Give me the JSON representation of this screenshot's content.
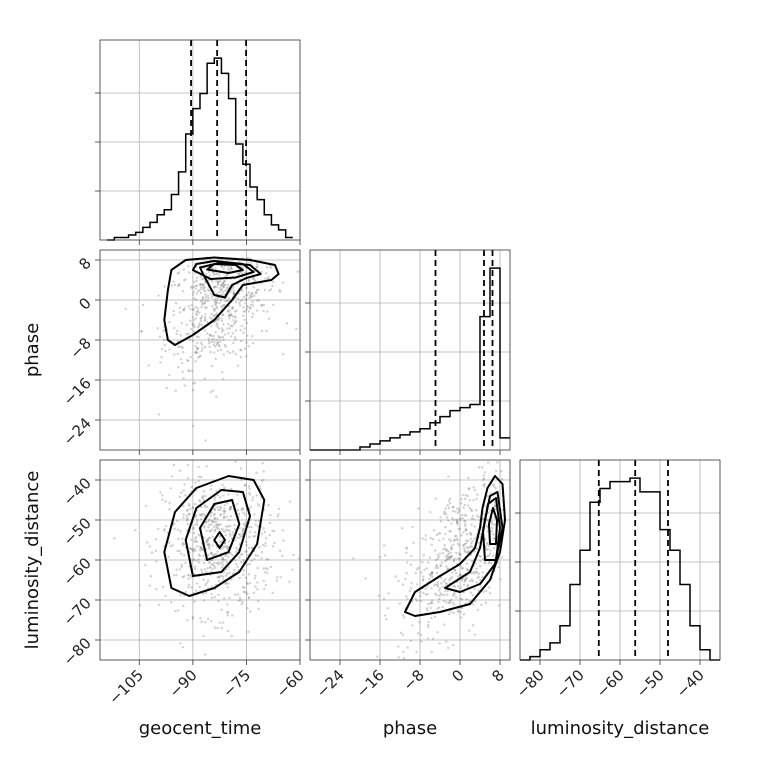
{
  "chart_data": {
    "type": "corner",
    "parameters": [
      "geocent_time",
      "phase",
      "luminosity_distance"
    ],
    "axis_labels": {
      "x": [
        "geocent_time",
        "phase",
        "luminosity_distance"
      ],
      "y": [
        "",
        "phase",
        "luminosity_distance"
      ]
    },
    "ranges": {
      "geocent_time": [
        -116,
        -60
      ],
      "phase": [
        -30,
        10
      ],
      "luminosity_distance": [
        -85,
        -35
      ]
    },
    "ticks": {
      "geocent_time": [
        -105,
        -90,
        -75,
        -60
      ],
      "phase": [
        -24,
        -16,
        -8,
        0,
        8
      ],
      "luminosity_distance": [
        -80,
        -70,
        -60,
        -50,
        -40
      ]
    },
    "tick_labels": {
      "geocent_time": [
        "−105",
        "−90",
        "−75",
        "−60"
      ],
      "phase": [
        "−24",
        "−16",
        "−8",
        "0",
        "8"
      ],
      "luminosity_distance": [
        "−80",
        "−70",
        "−60",
        "−50",
        "−40"
      ]
    },
    "quantiles": {
      "geocent_time": [
        -90.5,
        -83.2,
        -75.1
      ],
      "phase": [
        -4.9,
        4.8,
        6.5
      ],
      "luminosity_distance": [
        -65.3,
        -56.2,
        -48.0
      ]
    },
    "histograms": {
      "geocent_time": {
        "edges": [
          -114,
          -112,
          -110,
          -108,
          -106,
          -104,
          -102,
          -100,
          -98,
          -96,
          -94,
          -92,
          -90,
          -88,
          -86,
          -84,
          -82,
          -80,
          -78,
          -76,
          -74,
          -72,
          -70,
          -68,
          -66,
          -64,
          -62
        ],
        "counts": [
          0,
          1,
          1,
          2,
          3,
          5,
          7,
          10,
          12,
          18,
          27,
          42,
          52,
          58,
          70,
          72,
          66,
          56,
          38,
          30,
          21,
          16,
          10,
          6,
          4,
          1
        ]
      },
      "phase": {
        "edges": [
          -30,
          -28,
          -26,
          -24,
          -22,
          -20,
          -18,
          -16,
          -14,
          -12,
          -10,
          -8,
          -6,
          -4,
          -2,
          0,
          2,
          4,
          6,
          8,
          10
        ],
        "counts": [
          0,
          0,
          0,
          0,
          0,
          1,
          2,
          3,
          4,
          5,
          6,
          7,
          9,
          11,
          13,
          14,
          15,
          44,
          60,
          4
        ]
      },
      "luminosity_distance": {
        "edges": [
          -85,
          -82.5,
          -80,
          -77.5,
          -75,
          -72.5,
          -70,
          -67.5,
          -65,
          -62.5,
          -60,
          -57.5,
          -55,
          -52.5,
          -50,
          -47.5,
          -45,
          -42.5,
          -40,
          -37.5,
          -35
        ],
        "counts": [
          0,
          1,
          3,
          5,
          10,
          22,
          32,
          46,
          50,
          52,
          52,
          53,
          49,
          49,
          38,
          32,
          22,
          10,
          3,
          0
        ]
      }
    },
    "panels_2d": [
      {
        "x": "geocent_time",
        "y": "phase",
        "contours": [
          [
            [
              -95,
              -9
            ],
            [
              -90,
              -7
            ],
            [
              -84,
              -4
            ],
            [
              -79,
              0
            ],
            [
              -76,
              3
            ],
            [
              -72,
              3.5
            ],
            [
              -68,
              4
            ],
            [
              -66,
              5.2
            ],
            [
              -67,
              7
            ],
            [
              -74,
              8
            ],
            [
              -84,
              8.5
            ],
            [
              -92,
              8
            ],
            [
              -96,
              6
            ],
            [
              -97,
              2
            ],
            [
              -98,
              -4
            ],
            [
              -97,
              -8
            ]
          ],
          [
            [
              -87,
              5
            ],
            [
              -84,
              1
            ],
            [
              -81,
              0.5
            ],
            [
              -79,
              3
            ],
            [
              -75,
              4.4
            ],
            [
              -71,
              5.2
            ],
            [
              -74,
              7
            ],
            [
              -82,
              7.5
            ],
            [
              -88,
              6.5
            ]
          ],
          [
            [
              -90,
              6
            ],
            [
              -85,
              4.2
            ],
            [
              -78,
              4.5
            ],
            [
              -73,
              5.6
            ],
            [
              -76,
              7.2
            ],
            [
              -84,
              7.8
            ],
            [
              -89,
              7.2
            ]
          ],
          [
            [
              -86,
              6.1
            ],
            [
              -80,
              5.4
            ],
            [
              -76,
              6.0
            ],
            [
              -78,
              7.0
            ],
            [
              -84,
              7.2
            ]
          ]
        ]
      },
      {
        "x": "geocent_time",
        "y": "luminosity_distance",
        "contours": [
          [
            [
              -96,
              -67
            ],
            [
              -98,
              -58
            ],
            [
              -95,
              -48
            ],
            [
              -89,
              -42
            ],
            [
              -80,
              -39
            ],
            [
              -73,
              -40
            ],
            [
              -70,
              -45
            ],
            [
              -72,
              -56
            ],
            [
              -77,
              -63
            ],
            [
              -84,
              -67
            ],
            [
              -91,
              -69
            ]
          ],
          [
            [
              -90,
              -64
            ],
            [
              -92,
              -55
            ],
            [
              -89,
              -47
            ],
            [
              -82,
              -42.5
            ],
            [
              -76,
              -43
            ],
            [
              -74,
              -49
            ],
            [
              -77,
              -58
            ],
            [
              -82,
              -63
            ]
          ],
          [
            [
              -86,
              -60
            ],
            [
              -88,
              -52
            ],
            [
              -84,
              -46
            ],
            [
              -79,
              -45
            ],
            [
              -77,
              -51
            ],
            [
              -80,
              -58
            ]
          ],
          [
            [
              -84,
              -55
            ],
            [
              -82.5,
              -53
            ],
            [
              -81,
              -55
            ],
            [
              -82.5,
              -57
            ]
          ]
        ]
      },
      {
        "x": "phase",
        "y": "luminosity_distance",
        "contours": [
          [
            [
              -11,
              -73
            ],
            [
              -9,
              -68
            ],
            [
              -4,
              -64
            ],
            [
              0,
              -61
            ],
            [
              3,
              -57
            ],
            [
              4,
              -52
            ],
            [
              4.5,
              -47
            ],
            [
              5.5,
              -42
            ],
            [
              7,
              -39
            ],
            [
              8.5,
              -41
            ],
            [
              9,
              -50
            ],
            [
              8,
              -58
            ],
            [
              6,
              -65
            ],
            [
              2,
              -71
            ],
            [
              -4,
              -73
            ],
            [
              -9,
              -74
            ]
          ],
          [
            [
              -3,
              -67
            ],
            [
              2,
              -63
            ],
            [
              4,
              -57
            ],
            [
              5,
              -50
            ],
            [
              6,
              -44
            ],
            [
              7.5,
              -43
            ],
            [
              8.5,
              -52
            ],
            [
              7,
              -61
            ],
            [
              4,
              -66
            ],
            [
              0,
              -68
            ]
          ],
          [
            [
              5,
              -60
            ],
            [
              4.6,
              -53
            ],
            [
              5.6,
              -46
            ],
            [
              7.2,
              -44.5
            ],
            [
              8,
              -52
            ],
            [
              7.2,
              -60
            ]
          ],
          [
            [
              6,
              -56
            ],
            [
              5.8,
              -51
            ],
            [
              6.6,
              -47
            ],
            [
              7.4,
              -50
            ],
            [
              7.2,
              -56
            ]
          ]
        ]
      }
    ],
    "scatter_centers": [
      {
        "x": "geocent_time",
        "y": "phase",
        "mean": [
          -82,
          0
        ],
        "sd": [
          7,
          6
        ]
      },
      {
        "x": "geocent_time",
        "y": "luminosity_distance",
        "mean": [
          -83,
          -56
        ],
        "sd": [
          7,
          8
        ]
      },
      {
        "x": "phase",
        "y": "luminosity_distance",
        "mean": [
          1,
          -58
        ],
        "sd": [
          6,
          8
        ]
      }
    ]
  }
}
